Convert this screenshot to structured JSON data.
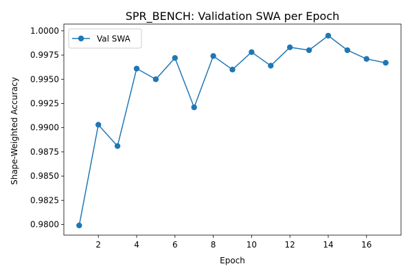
{
  "chart_data": {
    "type": "line",
    "title": "SPR_BENCH: Validation SWA per Epoch",
    "xlabel": "Epoch",
    "ylabel": "Shape-Weighted Accuracy",
    "xlim": [
      0.2,
      17.8
    ],
    "ylim": [
      0.9789,
      1.0007
    ],
    "xticks": [
      2,
      4,
      6,
      8,
      10,
      12,
      14,
      16
    ],
    "yticks": [
      0.98,
      0.9825,
      0.985,
      0.9875,
      0.99,
      0.9925,
      0.995,
      0.9975,
      1.0
    ],
    "ytick_labels": [
      "0.9800",
      "0.9825",
      "0.9850",
      "0.9875",
      "0.9900",
      "0.9925",
      "0.9950",
      "0.9975",
      "1.0000"
    ],
    "grid": false,
    "legend_position": "top-left",
    "series": [
      {
        "name": "Val SWA",
        "color": "#1f77b4",
        "marker": "circle",
        "x": [
          1,
          2,
          3,
          4,
          5,
          6,
          7,
          8,
          9,
          10,
          11,
          12,
          13,
          14,
          15,
          16,
          17
        ],
        "y": [
          0.9799,
          0.9903,
          0.9881,
          0.9961,
          0.995,
          0.9972,
          0.9921,
          0.9974,
          0.996,
          0.9978,
          0.9964,
          0.9983,
          0.998,
          0.9995,
          0.998,
          0.9971,
          0.9967
        ]
      }
    ]
  }
}
